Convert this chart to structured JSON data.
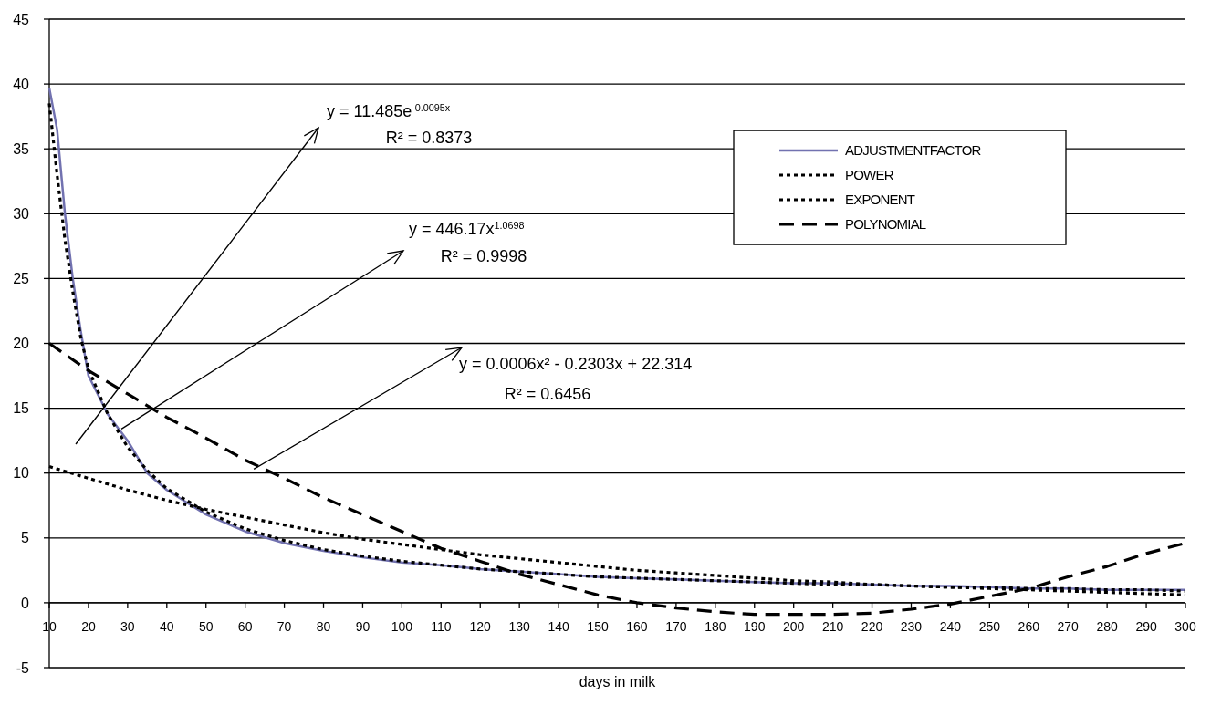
{
  "chart_data": {
    "type": "line",
    "xlabel": "days in milk",
    "x": [
      10,
      12,
      14,
      16,
      18,
      20,
      25,
      30,
      35,
      40,
      50,
      60,
      70,
      80,
      90,
      100,
      110,
      120,
      130,
      140,
      150,
      160,
      170,
      180,
      190,
      200,
      210,
      220,
      230,
      240,
      250,
      260,
      270,
      280,
      290,
      300
    ],
    "xlim": [
      10,
      300
    ],
    "xticks": [
      10,
      20,
      30,
      40,
      50,
      60,
      70,
      80,
      90,
      100,
      110,
      120,
      130,
      140,
      150,
      160,
      170,
      180,
      190,
      200,
      210,
      220,
      230,
      240,
      250,
      260,
      270,
      280,
      290,
      300
    ],
    "ylim": [
      -5,
      45
    ],
    "yticks": [
      -5,
      0,
      5,
      10,
      15,
      20,
      25,
      30,
      35,
      40,
      45
    ],
    "grid": "y",
    "legend": "top right",
    "series": [
      {
        "name": "ADJUSTMENTFACTOR",
        "color": "#7272b0",
        "line_style": "solid",
        "values": [
          39.7,
          36.5,
          30,
          25,
          21,
          17.5,
          14.5,
          12.5,
          10,
          8.7,
          6.8,
          5.5,
          4.6,
          4.0,
          3.5,
          3.1,
          2.9,
          2.6,
          2.4,
          2.2,
          2.0,
          1.9,
          1.8,
          1.7,
          1.6,
          1.5,
          1.5,
          1.4,
          1.3,
          1.3,
          1.2,
          1.1,
          1.1,
          1.0,
          1.0,
          1.0
        ]
      },
      {
        "name": "POWER",
        "color": "#000000",
        "line_style": "dotted",
        "values": [
          38.5,
          33,
          28,
          24,
          20.5,
          18,
          14.5,
          12,
          10.2,
          8.8,
          7,
          5.7,
          4.8,
          4.1,
          3.6,
          3.2,
          2.9,
          2.6,
          2.4,
          2.2,
          2.0,
          1.9,
          1.8,
          1.7,
          1.6,
          1.5,
          1.4,
          1.4,
          1.3,
          1.2,
          1.2,
          1.1,
          1.1,
          1.0,
          1.0,
          0.9
        ]
      },
      {
        "name": "EXPONENT",
        "color": "#000000",
        "line_style": "dotted",
        "x": [
          10,
          20,
          30,
          40,
          50,
          60,
          70,
          80,
          90,
          100,
          110,
          120,
          130,
          140,
          150,
          160,
          170,
          180,
          190,
          200,
          210,
          220,
          230,
          240,
          250,
          260,
          270,
          280,
          290,
          300
        ],
        "values": [
          10.5,
          9.6,
          8.7,
          7.9,
          7.2,
          6.6,
          6.0,
          5.4,
          4.9,
          4.5,
          4.1,
          3.7,
          3.4,
          3.1,
          2.8,
          2.5,
          2.3,
          2.1,
          1.9,
          1.7,
          1.6,
          1.4,
          1.3,
          1.2,
          1.1,
          1.0,
          0.9,
          0.8,
          0.7,
          0.6
        ]
      },
      {
        "name": "POLYNOMIAL",
        "color": "#000000",
        "line_style": "dashed",
        "x": [
          10,
          20,
          30,
          40,
          50,
          60,
          70,
          80,
          90,
          100,
          110,
          120,
          130,
          140,
          150,
          160,
          170,
          180,
          190,
          200,
          210,
          220,
          230,
          240,
          250,
          260,
          270,
          280,
          290,
          300
        ],
        "values": [
          20.0,
          17.9,
          16.1,
          14.3,
          12.7,
          11.0,
          9.6,
          8.1,
          6.8,
          5.5,
          4.2,
          3.2,
          2.2,
          1.4,
          0.6,
          0,
          -0.4,
          -0.7,
          -0.9,
          -0.9,
          -0.9,
          -0.8,
          -0.5,
          -0.1,
          0.5,
          1.1,
          2.0,
          2.8,
          3.8,
          4.6
        ]
      }
    ],
    "annotations": [
      "y = 11.485e$^{-0.0095x}$",
      "R² = 0.8373",
      {
        "text": "y = 446.17x$^{1.0698}$",
        "x": 28.4,
        "y": 13.4
      },
      "R² = 0.9998",
      {
        "text": "y = 0.0006x² - 0.2303x + 22.314",
        "x": 62.2,
        "y": 10.3
      },
      "R² = 0.6456"
    ]
  }
}
